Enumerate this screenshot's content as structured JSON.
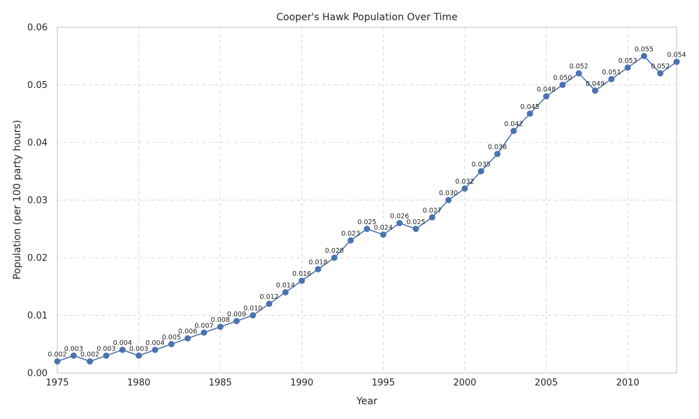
{
  "chart_data": {
    "type": "line",
    "title": "Cooper's Hawk Population Over Time",
    "xlabel": "Year",
    "ylabel": "Population (per 100 party hours)",
    "xlim": [
      1975,
      2013
    ],
    "ylim": [
      0,
      0.06
    ],
    "x_ticks": [
      1975,
      1980,
      1985,
      1990,
      1995,
      2000,
      2005,
      2010
    ],
    "y_ticks": [
      0.0,
      0.01,
      0.02,
      0.03,
      0.04,
      0.05,
      0.06
    ],
    "x_tick_labels": [
      "1975",
      "1980",
      "1985",
      "1990",
      "1995",
      "2000",
      "2005",
      "2010"
    ],
    "y_tick_labels": [
      "0.00",
      "0.01",
      "0.02",
      "0.03",
      "0.04",
      "0.05",
      "0.06"
    ],
    "grid": true,
    "legend": "none",
    "color": "#4c72b0",
    "x": [
      1975,
      1976,
      1977,
      1978,
      1979,
      1980,
      1981,
      1982,
      1983,
      1984,
      1985,
      1986,
      1987,
      1988,
      1989,
      1990,
      1991,
      1992,
      1993,
      1994,
      1995,
      1996,
      1997,
      1998,
      1999,
      2000,
      2001,
      2002,
      2003,
      2004,
      2005,
      2006,
      2007,
      2008,
      2009,
      2010,
      2011,
      2012,
      2013
    ],
    "values": [
      0.002,
      0.003,
      0.002,
      0.003,
      0.004,
      0.003,
      0.004,
      0.005,
      0.006,
      0.007,
      0.008,
      0.009,
      0.01,
      0.012,
      0.014,
      0.016,
      0.018,
      0.02,
      0.023,
      0.025,
      0.024,
      0.026,
      0.025,
      0.027,
      0.03,
      0.032,
      0.035,
      0.038,
      0.042,
      0.045,
      0.048,
      0.05,
      0.052,
      0.049,
      0.051,
      0.053,
      0.055,
      0.052,
      0.054
    ],
    "data_labels": [
      "0.002",
      "0.003",
      "0.002",
      "0.003",
      "0.004",
      "0.003",
      "0.004",
      "0.005",
      "0.006",
      "0.007",
      "0.008",
      "0.009",
      "0.010",
      "0.012",
      "0.014",
      "0.016",
      "0.018",
      "0.020",
      "0.023",
      "0.025",
      "0.024",
      "0.026",
      "0.025",
      "0.027",
      "0.030",
      "0.032",
      "0.035",
      "0.038",
      "0.042",
      "0.045",
      "0.048",
      "0.050",
      "0.052",
      "0.049",
      "0.051",
      "0.053",
      "0.055",
      "0.052",
      "0.054"
    ]
  }
}
